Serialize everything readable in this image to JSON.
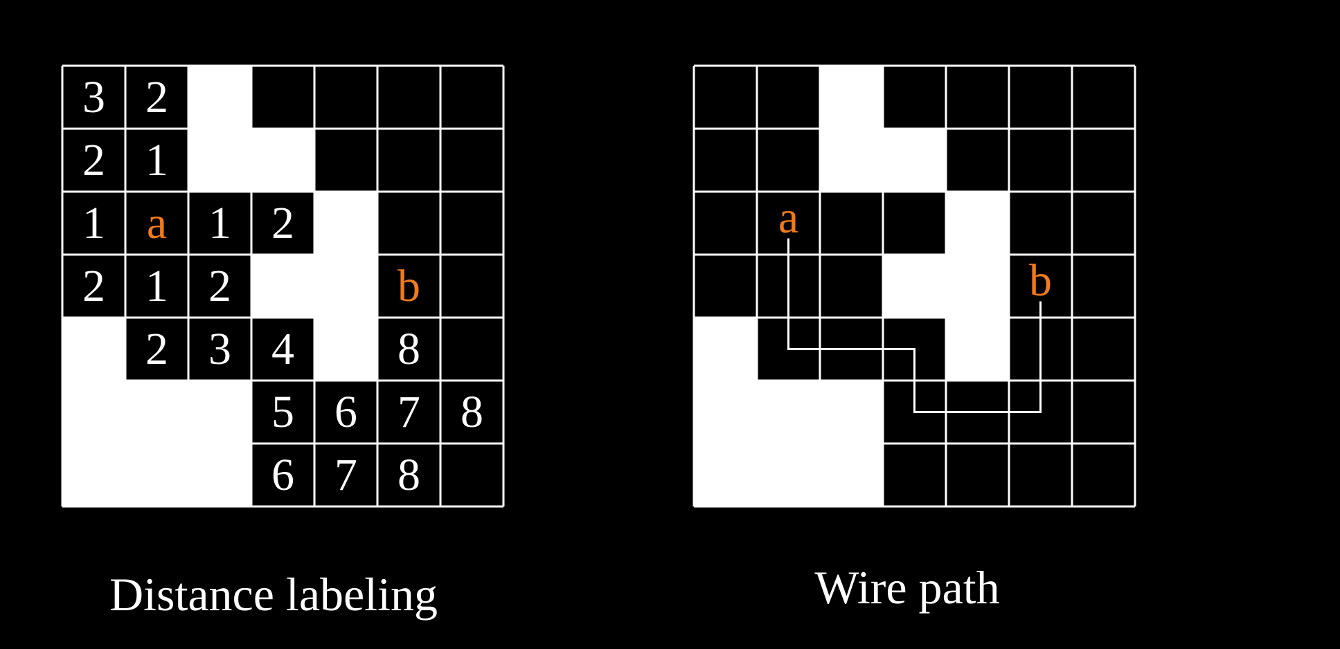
{
  "colors": {
    "background": "#000000",
    "blocked": "#ffffff",
    "open": "#000000",
    "grid_line": "#ffffff",
    "text": "#ffffff",
    "terminal": "#f07a1c"
  },
  "grids": [
    {
      "id": "left",
      "caption": "Distance labeling",
      "blocked": [
        [
          0,
          0,
          1,
          0,
          0,
          0,
          0
        ],
        [
          0,
          0,
          1,
          1,
          0,
          0,
          0
        ],
        [
          0,
          0,
          0,
          0,
          1,
          0,
          0
        ],
        [
          0,
          0,
          0,
          1,
          1,
          0,
          0
        ],
        [
          1,
          0,
          0,
          0,
          1,
          0,
          0
        ],
        [
          1,
          1,
          1,
          0,
          0,
          0,
          0
        ],
        [
          1,
          1,
          1,
          0,
          0,
          0,
          0
        ]
      ],
      "labels": [
        [
          "3",
          "2",
          "",
          "",
          "",
          "",
          ""
        ],
        [
          "2",
          "1",
          "",
          "",
          "",
          "",
          ""
        ],
        [
          "1",
          "a",
          "1",
          "2",
          "",
          "",
          ""
        ],
        [
          "2",
          "1",
          "2",
          "",
          "",
          "b",
          ""
        ],
        [
          "",
          "2",
          "3",
          "4",
          "",
          "8",
          ""
        ],
        [
          "",
          "",
          "",
          "5",
          "6",
          "7",
          "8"
        ],
        [
          "",
          "",
          "",
          "6",
          "7",
          "8",
          ""
        ]
      ],
      "terminals": [
        "a",
        "b"
      ],
      "path": []
    },
    {
      "id": "right",
      "caption": "Wire path",
      "blocked": [
        [
          0,
          0,
          1,
          0,
          0,
          0,
          0
        ],
        [
          0,
          0,
          1,
          1,
          0,
          0,
          0
        ],
        [
          0,
          0,
          0,
          0,
          1,
          0,
          0
        ],
        [
          0,
          0,
          0,
          1,
          1,
          0,
          0
        ],
        [
          1,
          0,
          0,
          0,
          1,
          0,
          0
        ],
        [
          1,
          1,
          1,
          0,
          0,
          0,
          0
        ],
        [
          1,
          1,
          1,
          0,
          0,
          0,
          0
        ]
      ],
      "labels": [
        [
          "",
          "",
          "",
          "",
          "",
          "",
          ""
        ],
        [
          "",
          "",
          "",
          "",
          "",
          "",
          ""
        ],
        [
          "",
          "a",
          "",
          "",
          "",
          "",
          ""
        ],
        [
          "",
          "",
          "",
          "",
          "",
          "b",
          ""
        ],
        [
          "",
          "",
          "",
          "",
          "",
          "",
          ""
        ],
        [
          "",
          "",
          "",
          "",
          "",
          "",
          ""
        ],
        [
          "",
          "",
          "",
          "",
          "",
          "",
          ""
        ]
      ],
      "terminals": [
        "a",
        "b"
      ],
      "path": [
        [
          2,
          1
        ],
        [
          3,
          1
        ],
        [
          4,
          1
        ],
        [
          4,
          2
        ],
        [
          4,
          3
        ],
        [
          5,
          3
        ],
        [
          5,
          4
        ],
        [
          5,
          5
        ],
        [
          4,
          5
        ],
        [
          3,
          5
        ]
      ]
    }
  ]
}
